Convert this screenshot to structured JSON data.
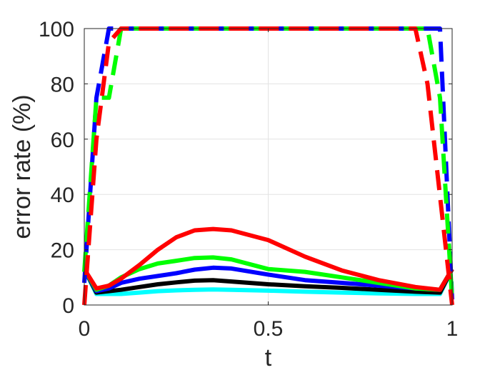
{
  "chart_data": {
    "type": "line",
    "xlabel": "t",
    "ylabel": "error rate (%)",
    "xlim": [
      0,
      1
    ],
    "ylim": [
      0,
      100
    ],
    "xticks": [
      0,
      0.5,
      1
    ],
    "xtick_labels": [
      "0",
      "0.5",
      "1"
    ],
    "yticks": [
      0,
      20,
      40,
      60,
      80,
      100
    ],
    "ytick_labels": [
      "0",
      "20",
      "40",
      "60",
      "80",
      "100"
    ],
    "grid": true,
    "series": [
      {
        "color": "#00ffff",
        "style": "solid",
        "x": [
          0,
          0.033,
          0.067,
          0.1,
          0.15,
          0.2,
          0.25,
          0.3,
          0.35,
          0.4,
          0.5,
          0.6,
          0.7,
          0.8,
          0.9,
          0.967,
          1
        ],
        "y": [
          13,
          4,
          4,
          4,
          4.5,
          5,
          5.3,
          5.5,
          5.6,
          5.5,
          5.2,
          4.8,
          4.5,
          4.2,
          4,
          4,
          13
        ]
      },
      {
        "color": "#000000",
        "style": "solid",
        "x": [
          0,
          0.033,
          0.067,
          0.1,
          0.15,
          0.2,
          0.25,
          0.3,
          0.35,
          0.4,
          0.5,
          0.6,
          0.7,
          0.8,
          0.9,
          0.967,
          1
        ],
        "y": [
          13,
          4.5,
          5,
          5.5,
          6.5,
          7.5,
          8.2,
          8.8,
          9,
          8.5,
          7.5,
          6.8,
          6.2,
          5.5,
          4.8,
          4.5,
          13
        ]
      },
      {
        "color": "#0000ff",
        "style": "solid",
        "x": [
          0,
          0.033,
          0.067,
          0.1,
          0.15,
          0.2,
          0.25,
          0.3,
          0.35,
          0.4,
          0.5,
          0.6,
          0.7,
          0.8,
          0.9,
          0.967,
          1
        ],
        "y": [
          13,
          5,
          6,
          8,
          9.5,
          10.5,
          11.5,
          12.8,
          13.5,
          13.2,
          11,
          9,
          8,
          7,
          6,
          5.5,
          13
        ]
      },
      {
        "color": "#00ff00",
        "style": "solid",
        "x": [
          0,
          0.033,
          0.067,
          0.1,
          0.15,
          0.2,
          0.25,
          0.3,
          0.35,
          0.4,
          0.5,
          0.6,
          0.7,
          0.8,
          0.9,
          0.967,
          1
        ],
        "y": [
          13,
          5.5,
          7,
          10,
          13,
          15,
          16,
          17,
          17.2,
          16.5,
          13,
          12,
          10,
          8,
          6,
          5.5,
          13
        ]
      },
      {
        "color": "#ff0000",
        "style": "solid",
        "x": [
          0,
          0.033,
          0.067,
          0.1,
          0.15,
          0.2,
          0.25,
          0.3,
          0.35,
          0.4,
          0.5,
          0.6,
          0.7,
          0.8,
          0.9,
          0.967,
          1
        ],
        "y": [
          13,
          6,
          7,
          9.5,
          14.5,
          20,
          24.5,
          27,
          27.5,
          27,
          23.5,
          17.5,
          12.5,
          9,
          6.5,
          5.5,
          13
        ]
      },
      {
        "color": "#0000ff",
        "style": "dashed",
        "x": [
          0,
          0.033,
          0.067,
          0.1,
          0.5,
          0.95,
          0.967,
          1
        ],
        "y": [
          8,
          75,
          100,
          100,
          100,
          100,
          100,
          2
        ]
      },
      {
        "color": "#00ff00",
        "style": "dashed",
        "x": [
          0,
          0.033,
          0.067,
          0.1,
          0.5,
          0.933,
          0.967,
          1
        ],
        "y": [
          12,
          75,
          75,
          100,
          100,
          100,
          75,
          2
        ]
      },
      {
        "color": "#ff0000",
        "style": "dashed",
        "x": [
          0,
          0.033,
          0.067,
          0.1,
          0.5,
          0.9,
          0.933,
          1
        ],
        "y": [
          0,
          60,
          95,
          100,
          100,
          100,
          80,
          0
        ]
      }
    ]
  }
}
